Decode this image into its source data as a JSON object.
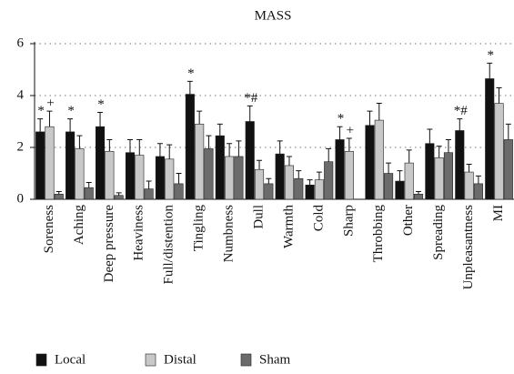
{
  "chart_data": {
    "type": "bar",
    "title": "MASS",
    "categories": [
      "Soreness",
      "Aching",
      "Deep pressure",
      "Heaviness",
      "Full/distention",
      "Tingling",
      "Numbness",
      "Dull",
      "Warmth",
      "Cold",
      "Sharp",
      "Throbbing",
      "Other",
      "Spreading",
      "Unpleasantness",
      "MI"
    ],
    "series": [
      {
        "name": "Local",
        "color": "#111111",
        "values": [
          2.6,
          2.6,
          2.8,
          1.8,
          1.65,
          4.05,
          2.45,
          3.0,
          1.75,
          0.55,
          2.3,
          2.85,
          0.7,
          2.15,
          2.65,
          4.65
        ],
        "error": [
          0.5,
          0.5,
          0.55,
          0.5,
          0.5,
          0.5,
          0.45,
          0.6,
          0.5,
          0.2,
          0.5,
          0.55,
          0.4,
          0.55,
          0.45,
          0.6
        ],
        "annotations": [
          "*",
          "*",
          "*",
          null,
          null,
          "*",
          null,
          "*#",
          null,
          null,
          "*",
          null,
          null,
          null,
          "*#",
          "*"
        ]
      },
      {
        "name": "Distal",
        "color": "#c8c8c8",
        "values": [
          2.8,
          1.95,
          1.85,
          1.7,
          1.55,
          2.9,
          1.65,
          1.15,
          1.3,
          0.75,
          1.85,
          3.05,
          1.4,
          1.6,
          1.05,
          3.7
        ],
        "error": [
          0.6,
          0.5,
          0.45,
          0.6,
          0.55,
          0.5,
          0.5,
          0.35,
          0.35,
          0.3,
          0.5,
          0.65,
          0.5,
          0.45,
          0.3,
          0.6
        ],
        "annotations": [
          "+",
          null,
          null,
          null,
          null,
          null,
          null,
          null,
          null,
          null,
          "+",
          null,
          null,
          null,
          null,
          null
        ]
      },
      {
        "name": "Sham",
        "color": "#6b6b6b",
        "values": [
          0.2,
          0.45,
          0.15,
          0.4,
          0.6,
          1.95,
          1.65,
          0.6,
          0.8,
          1.45,
          null,
          1.0,
          0.2,
          1.8,
          0.6,
          2.3
        ],
        "error": [
          0.1,
          0.2,
          0.1,
          0.3,
          0.4,
          0.5,
          0.6,
          0.2,
          0.3,
          0.5,
          null,
          0.4,
          0.1,
          0.5,
          0.3,
          0.6
        ],
        "annotations": [
          null,
          null,
          null,
          null,
          null,
          null,
          null,
          null,
          null,
          null,
          null,
          null,
          null,
          null,
          null,
          null
        ]
      }
    ],
    "ylim": [
      0,
      6
    ],
    "yticks": [
      0,
      2,
      4,
      6
    ],
    "grid": true,
    "legend": "bottom"
  }
}
